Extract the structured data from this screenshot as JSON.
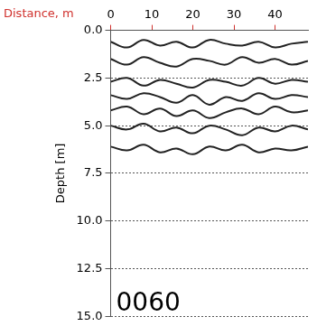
{
  "chart_data": {
    "type": "line",
    "x_label": "Distance, m",
    "y_label": "Depth [m]",
    "annotation": "0060",
    "x": [
      0,
      4,
      8,
      12,
      16,
      20,
      24,
      28,
      32,
      36,
      40,
      44,
      48
    ],
    "series": [
      {
        "values": [
          0.6,
          0.9,
          0.5,
          0.8,
          0.6,
          0.9,
          0.5,
          0.7,
          0.8,
          0.6,
          0.9,
          0.7,
          0.6
        ]
      },
      {
        "values": [
          1.5,
          1.8,
          1.4,
          1.7,
          1.9,
          1.5,
          1.6,
          1.8,
          1.4,
          1.7,
          1.5,
          1.8,
          1.6
        ]
      },
      {
        "values": [
          2.7,
          2.5,
          2.9,
          2.6,
          2.8,
          3.0,
          2.6,
          2.7,
          2.9,
          2.5,
          2.8,
          2.6,
          2.7
        ]
      },
      {
        "values": [
          3.4,
          3.6,
          3.3,
          3.5,
          3.8,
          3.4,
          3.9,
          3.5,
          3.7,
          3.3,
          3.6,
          3.4,
          3.5
        ]
      },
      {
        "values": [
          4.2,
          4.0,
          4.4,
          4.1,
          4.5,
          4.2,
          4.6,
          4.3,
          4.1,
          4.4,
          4.0,
          4.3,
          4.2
        ]
      },
      {
        "values": [
          5.0,
          5.2,
          4.9,
          5.3,
          5.1,
          5.4,
          5.0,
          5.2,
          5.5,
          5.1,
          5.3,
          5.0,
          5.2
        ]
      },
      {
        "values": [
          6.1,
          6.3,
          6.0,
          6.4,
          6.2,
          6.5,
          6.1,
          6.3,
          6.0,
          6.4,
          6.2,
          6.3,
          6.1
        ]
      }
    ],
    "color": "#222222",
    "line_style": "solid",
    "xlim": [
      0,
      48
    ],
    "xticks": [
      0,
      10,
      20,
      30,
      40
    ],
    "ylim": [
      0,
      15
    ],
    "yticks": [
      {
        "value": 0,
        "label": "0.0"
      },
      2.5,
      {
        "value": 5,
        "label": "5.0"
      },
      7.5,
      {
        "value": 10,
        "label": "10.0"
      },
      12.5,
      {
        "value": 15,
        "label": "15.0"
      }
    ],
    "grid": "y"
  }
}
